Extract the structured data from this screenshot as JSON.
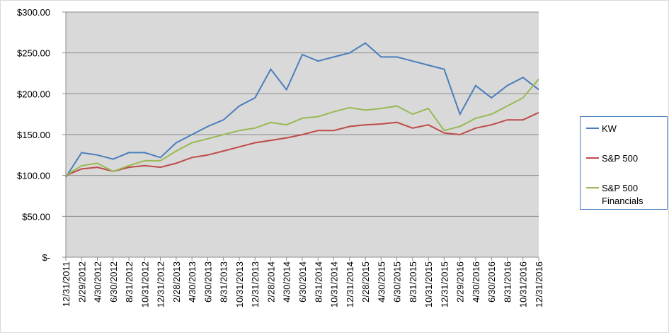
{
  "chart_data": {
    "type": "line",
    "categories": [
      "12/31/2011",
      "2/29/2012",
      "4/30/2012",
      "6/30/2012",
      "8/31/2012",
      "10/31/2012",
      "12/31/2012",
      "2/28/2013",
      "4/30/2013",
      "6/30/2013",
      "8/31/2013",
      "10/31/2013",
      "12/31/2013",
      "2/28/2014",
      "4/30/2014",
      "6/30/2014",
      "8/31/2014",
      "10/31/2014",
      "12/31/2014",
      "2/28/2015",
      "4/30/2015",
      "6/30/2015",
      "8/31/2015",
      "10/31/2015",
      "12/31/2015",
      "2/29/2016",
      "4/30/2016",
      "6/30/2016",
      "8/31/2016",
      "10/31/2016",
      "12/31/2016"
    ],
    "series": [
      {
        "name": "KW",
        "color": "#4a7ebb",
        "values": [
          98,
          128,
          125,
          120,
          128,
          128,
          122,
          140,
          150,
          160,
          168,
          185,
          195,
          230,
          205,
          248,
          240,
          245,
          250,
          262,
          245,
          245,
          240,
          235,
          230,
          175,
          210,
          195,
          210,
          220,
          205
        ]
      },
      {
        "name": "S&P 500",
        "color": "#be4b48",
        "values": [
          100,
          108,
          110,
          105,
          110,
          112,
          110,
          115,
          122,
          125,
          130,
          135,
          140,
          143,
          146,
          150,
          155,
          155,
          160,
          162,
          163,
          165,
          158,
          162,
          152,
          150,
          158,
          162,
          168,
          168,
          177
        ]
      },
      {
        "name": "S&P 500 Financials",
        "color": "#98b954",
        "values": [
          100,
          112,
          115,
          105,
          112,
          118,
          118,
          130,
          140,
          145,
          150,
          155,
          158,
          165,
          162,
          170,
          172,
          178,
          183,
          180,
          182,
          185,
          175,
          182,
          155,
          160,
          170,
          175,
          185,
          195,
          218
        ]
      }
    ],
    "ylim": [
      0,
      300
    ],
    "yticks": [
      {
        "value": 0,
        "label": "$-"
      },
      {
        "value": 50,
        "label": "$50.00"
      },
      {
        "value": 100,
        "label": "$100.00"
      },
      {
        "value": 150,
        "label": "$150.00"
      },
      {
        "value": 200,
        "label": "$200.00"
      },
      {
        "value": 250,
        "label": "$250.00"
      },
      {
        "value": 300,
        "label": "$300.00"
      }
    ],
    "grid": true,
    "legend": "right",
    "plot_background": "#d9d9d9"
  }
}
